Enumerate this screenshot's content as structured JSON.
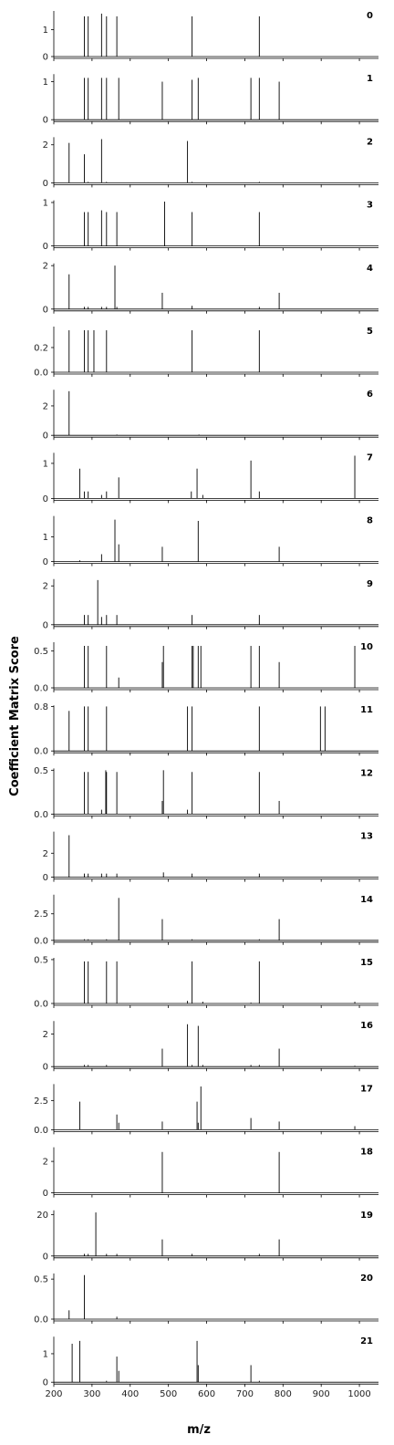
{
  "chart_data": {
    "type": "bar",
    "subtype": "stem-spectra",
    "xlabel": "m/z",
    "ylabel": "Coefficient Matrix Score",
    "xlim": [
      200,
      1050
    ],
    "x_ticks": [
      200,
      300,
      400,
      500,
      600,
      700,
      800,
      900,
      1000
    ],
    "grid": false,
    "line_color": "#000000",
    "panels": [
      {
        "label": "0",
        "ylim": [
          0,
          1.7
        ],
        "y_ticks": [
          0,
          1
        ],
        "peaks": [
          [
            280,
            1.5
          ],
          [
            290,
            1.5
          ],
          [
            325,
            1.6
          ],
          [
            338,
            1.5
          ],
          [
            365,
            1.5
          ],
          [
            562,
            1.5
          ],
          [
            738,
            1.5
          ]
        ]
      },
      {
        "label": "1",
        "ylim": [
          0,
          1.2
        ],
        "y_ticks": [
          0,
          1
        ],
        "peaks": [
          [
            280,
            1.1
          ],
          [
            290,
            1.1
          ],
          [
            325,
            1.1
          ],
          [
            338,
            1.1
          ],
          [
            370,
            1.1
          ],
          [
            484,
            1.0
          ],
          [
            562,
            1.05
          ],
          [
            578,
            1.1
          ],
          [
            716,
            1.1
          ],
          [
            738,
            1.1
          ],
          [
            790,
            1.0
          ]
        ]
      },
      {
        "label": "2",
        "ylim": [
          0,
          2.4
        ],
        "y_ticks": [
          0,
          2
        ],
        "peaks": [
          [
            240,
            2.1
          ],
          [
            280,
            1.5
          ],
          [
            290,
            0.05
          ],
          [
            325,
            2.3
          ],
          [
            338,
            0.05
          ],
          [
            550,
            2.2
          ],
          [
            562,
            0.05
          ],
          [
            738,
            0.05
          ]
        ]
      },
      {
        "label": "3",
        "ylim": [
          0,
          1.05
        ],
        "y_ticks": [
          0,
          1
        ],
        "peaks": [
          [
            280,
            0.78
          ],
          [
            290,
            0.78
          ],
          [
            325,
            0.82
          ],
          [
            338,
            0.78
          ],
          [
            365,
            0.78
          ],
          [
            490,
            1.02
          ],
          [
            562,
            0.78
          ],
          [
            738,
            0.78
          ]
        ]
      },
      {
        "label": "4",
        "ylim": [
          0,
          2.1
        ],
        "y_ticks": [
          0,
          2
        ],
        "peaks": [
          [
            240,
            1.6
          ],
          [
            280,
            0.1
          ],
          [
            290,
            0.1
          ],
          [
            325,
            0.1
          ],
          [
            338,
            0.1
          ],
          [
            360,
            2.0
          ],
          [
            365,
            0.1
          ],
          [
            484,
            0.75
          ],
          [
            562,
            0.15
          ],
          [
            738,
            0.1
          ],
          [
            790,
            0.75
          ]
        ]
      },
      {
        "label": "5",
        "ylim": [
          0,
          0.37
        ],
        "y_ticks": [
          0,
          0.2
        ],
        "y_tick_labels": [
          "0.0",
          "0.2"
        ],
        "peaks": [
          [
            240,
            0.34
          ],
          [
            280,
            0.34
          ],
          [
            290,
            0.34
          ],
          [
            305,
            0.34
          ],
          [
            338,
            0.34
          ],
          [
            562,
            0.34
          ],
          [
            738,
            0.34
          ]
        ]
      },
      {
        "label": "6",
        "ylim": [
          0,
          3.1
        ],
        "y_ticks": [
          0,
          2
        ],
        "peaks": [
          [
            240,
            3.0
          ],
          [
            365,
            0.05
          ],
          [
            580,
            0.05
          ]
        ]
      },
      {
        "label": "7",
        "ylim": [
          0,
          1.3
        ],
        "y_ticks": [
          0,
          1
        ],
        "peaks": [
          [
            268,
            0.85
          ],
          [
            280,
            0.2
          ],
          [
            290,
            0.2
          ],
          [
            325,
            0.1
          ],
          [
            338,
            0.2
          ],
          [
            370,
            0.6
          ],
          [
            560,
            0.2
          ],
          [
            575,
            0.85
          ],
          [
            590,
            0.1
          ],
          [
            716,
            1.08
          ],
          [
            738,
            0.2
          ],
          [
            988,
            1.22
          ]
        ]
      },
      {
        "label": "8",
        "ylim": [
          0,
          1.85
        ],
        "y_ticks": [
          0,
          1
        ],
        "peaks": [
          [
            268,
            0.05
          ],
          [
            325,
            0.3
          ],
          [
            360,
            1.7
          ],
          [
            370,
            0.7
          ],
          [
            484,
            0.6
          ],
          [
            578,
            1.65
          ],
          [
            790,
            0.6
          ]
        ]
      },
      {
        "label": "9",
        "ylim": [
          0,
          2.35
        ],
        "y_ticks": [
          0,
          2
        ],
        "peaks": [
          [
            280,
            0.5
          ],
          [
            290,
            0.5
          ],
          [
            315,
            2.3
          ],
          [
            325,
            0.4
          ],
          [
            338,
            0.5
          ],
          [
            365,
            0.5
          ],
          [
            562,
            0.5
          ],
          [
            738,
            0.5
          ]
        ]
      },
      {
        "label": "10",
        "ylim": [
          0,
          0.62
        ],
        "y_ticks": [
          0,
          0.5
        ],
        "y_tick_labels": [
          "0.0",
          "0.5"
        ],
        "peaks": [
          [
            280,
            0.57
          ],
          [
            290,
            0.57
          ],
          [
            338,
            0.57
          ],
          [
            370,
            0.14
          ],
          [
            484,
            0.35
          ],
          [
            487,
            0.57
          ],
          [
            562,
            0.57
          ],
          [
            565,
            0.57
          ],
          [
            578,
            0.57
          ],
          [
            585,
            0.57
          ],
          [
            716,
            0.57
          ],
          [
            738,
            0.57
          ],
          [
            790,
            0.35
          ],
          [
            988,
            0.57
          ]
        ]
      },
      {
        "label": "11",
        "ylim": [
          0,
          0.82
        ],
        "y_ticks": [
          0,
          0.8
        ],
        "y_tick_labels": [
          "0.0",
          "0.8"
        ],
        "peaks": [
          [
            240,
            0.72
          ],
          [
            280,
            0.8
          ],
          [
            290,
            0.8
          ],
          [
            338,
            0.8
          ],
          [
            550,
            0.8
          ],
          [
            562,
            0.8
          ],
          [
            738,
            0.8
          ],
          [
            898,
            0.8
          ],
          [
            910,
            0.8
          ]
        ]
      },
      {
        "label": "12",
        "ylim": [
          0,
          0.52
        ],
        "y_ticks": [
          0,
          0.5
        ],
        "y_tick_labels": [
          "0.0",
          "0.5"
        ],
        "peaks": [
          [
            280,
            0.48
          ],
          [
            290,
            0.48
          ],
          [
            325,
            0.05
          ],
          [
            336,
            0.5
          ],
          [
            338,
            0.48
          ],
          [
            365,
            0.48
          ],
          [
            484,
            0.15
          ],
          [
            487,
            0.5
          ],
          [
            550,
            0.05
          ],
          [
            562,
            0.48
          ],
          [
            738,
            0.48
          ],
          [
            790,
            0.15
          ]
        ]
      },
      {
        "label": "13",
        "ylim": [
          0,
          3.8
        ],
        "y_ticks": [
          0,
          2
        ],
        "peaks": [
          [
            240,
            3.5
          ],
          [
            280,
            0.3
          ],
          [
            290,
            0.3
          ],
          [
            325,
            0.3
          ],
          [
            338,
            0.3
          ],
          [
            365,
            0.3
          ],
          [
            487,
            0.4
          ],
          [
            562,
            0.3
          ],
          [
            738,
            0.3
          ]
        ]
      },
      {
        "label": "14",
        "ylim": [
          0,
          4.3
        ],
        "y_ticks": [
          0,
          2.5
        ],
        "y_tick_labels": [
          "0.0",
          "2.5"
        ],
        "peaks": [
          [
            280,
            0.1
          ],
          [
            290,
            0.1
          ],
          [
            338,
            0.1
          ],
          [
            370,
            4.0
          ],
          [
            484,
            2.0
          ],
          [
            562,
            0.1
          ],
          [
            738,
            0.1
          ],
          [
            790,
            2.0
          ]
        ]
      },
      {
        "label": "15",
        "ylim": [
          0,
          0.52
        ],
        "y_ticks": [
          0,
          0.5
        ],
        "y_tick_labels": [
          "0.0",
          "0.5"
        ],
        "peaks": [
          [
            280,
            0.48
          ],
          [
            290,
            0.48
          ],
          [
            338,
            0.48
          ],
          [
            365,
            0.48
          ],
          [
            550,
            0.03
          ],
          [
            562,
            0.48
          ],
          [
            590,
            0.02
          ],
          [
            716,
            0.01
          ],
          [
            738,
            0.48
          ],
          [
            988,
            0.02
          ]
        ]
      },
      {
        "label": "16",
        "ylim": [
          0,
          2.8
        ],
        "y_ticks": [
          0,
          2
        ],
        "peaks": [
          [
            280,
            0.1
          ],
          [
            290,
            0.1
          ],
          [
            338,
            0.1
          ],
          [
            484,
            1.1
          ],
          [
            550,
            2.6
          ],
          [
            562,
            0.1
          ],
          [
            578,
            2.5
          ],
          [
            590,
            0.1
          ],
          [
            716,
            0.1
          ],
          [
            738,
            0.1
          ],
          [
            790,
            1.1
          ],
          [
            988,
            0.05
          ]
        ]
      },
      {
        "label": "17",
        "ylim": [
          0,
          3.9
        ],
        "y_ticks": [
          0,
          2.5
        ],
        "y_tick_labels": [
          "0.0",
          "2.5"
        ],
        "peaks": [
          [
            268,
            2.4
          ],
          [
            365,
            1.3
          ],
          [
            370,
            0.6
          ],
          [
            484,
            0.7
          ],
          [
            575,
            2.4
          ],
          [
            578,
            0.6
          ],
          [
            585,
            3.7
          ],
          [
            716,
            1.0
          ],
          [
            790,
            0.7
          ],
          [
            988,
            0.3
          ]
        ]
      },
      {
        "label": "18",
        "ylim": [
          0,
          2.9
        ],
        "y_ticks": [
          0,
          2
        ],
        "peaks": [
          [
            484,
            2.6
          ],
          [
            790,
            2.6
          ]
        ]
      },
      {
        "label": "19",
        "ylim": [
          0,
          22
        ],
        "y_ticks": [
          0,
          20
        ],
        "peaks": [
          [
            280,
            1
          ],
          [
            290,
            1
          ],
          [
            310,
            21
          ],
          [
            338,
            1
          ],
          [
            365,
            1
          ],
          [
            484,
            8
          ],
          [
            562,
            1
          ],
          [
            738,
            1
          ],
          [
            790,
            8
          ]
        ]
      },
      {
        "label": "20",
        "ylim": [
          0,
          0.57
        ],
        "y_ticks": [
          0,
          0.5
        ],
        "y_tick_labels": [
          "0.0",
          "0.5"
        ],
        "peaks": [
          [
            240,
            0.11
          ],
          [
            280,
            0.55
          ],
          [
            365,
            0.03
          ]
        ]
      },
      {
        "label": "21",
        "ylim": [
          0,
          1.6
        ],
        "y_ticks": [
          0,
          1
        ],
        "peaks": [
          [
            248,
            1.35
          ],
          [
            268,
            1.45
          ],
          [
            338,
            0.05
          ],
          [
            365,
            0.9
          ],
          [
            370,
            0.4
          ],
          [
            575,
            1.45
          ],
          [
            578,
            0.6
          ],
          [
            716,
            0.6
          ],
          [
            738,
            0.05
          ]
        ]
      }
    ]
  }
}
